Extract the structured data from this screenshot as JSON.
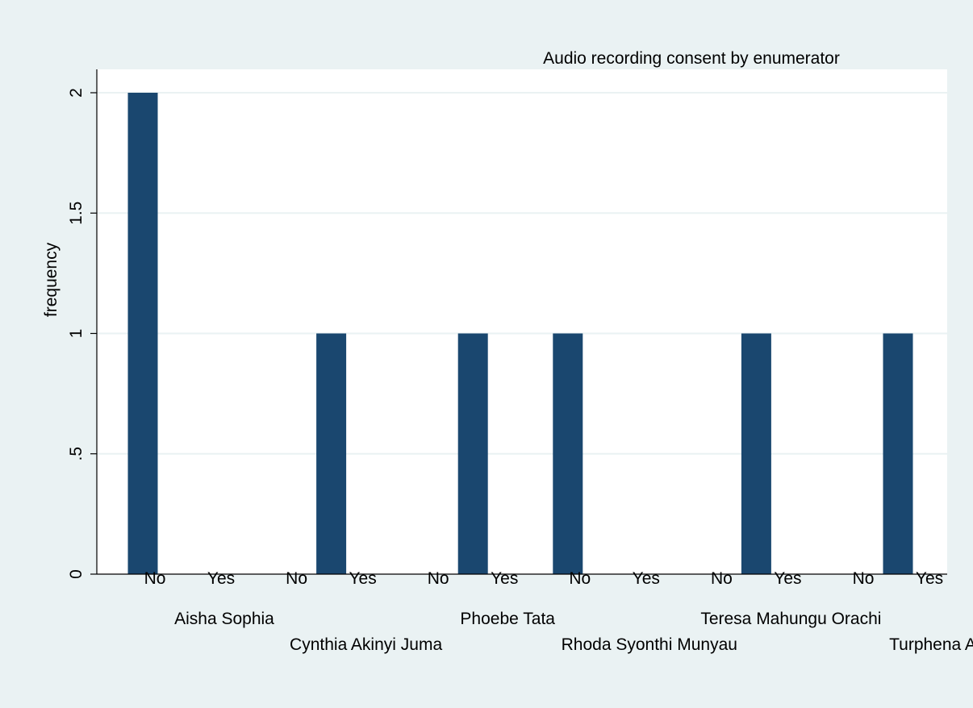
{
  "chart_data": {
    "type": "bar",
    "title": "Audio recording consent by enumerator",
    "ylabel": "frequency",
    "xlabel": "",
    "ylim": [
      0,
      2
    ],
    "yticks": [
      {
        "value": 0,
        "label": "0"
      },
      {
        "value": 0.5,
        "label": ".5"
      },
      {
        "value": 1,
        "label": "1"
      },
      {
        "value": 1.5,
        "label": "1.5"
      },
      {
        "value": 2,
        "label": "2"
      }
    ],
    "grid": true,
    "bar_color": "#1a476f",
    "plot_background": "#ffffff",
    "figure_background": "#eaf2f3",
    "groups": [
      {
        "name": "Aisha Sophia",
        "categories": [
          "No",
          "Yes"
        ],
        "values": [
          2,
          0
        ]
      },
      {
        "name": "Cynthia Akinyi Juma",
        "categories": [
          "No",
          "Yes"
        ],
        "values": [
          0,
          1
        ]
      },
      {
        "name": "Phoebe Tata",
        "categories": [
          "No",
          "Yes"
        ],
        "values": [
          0,
          1
        ]
      },
      {
        "name": "Rhoda Syonthi Munyau",
        "categories": [
          "No",
          "Yes"
        ],
        "values": [
          1,
          0
        ]
      },
      {
        "name": "Teresa Mahungu Orachi",
        "categories": [
          "No",
          "Yes"
        ],
        "values": [
          0,
          1
        ]
      },
      {
        "name": "Turphena A",
        "categories": [
          "No",
          "Yes"
        ],
        "values": [
          0,
          1
        ]
      }
    ]
  }
}
